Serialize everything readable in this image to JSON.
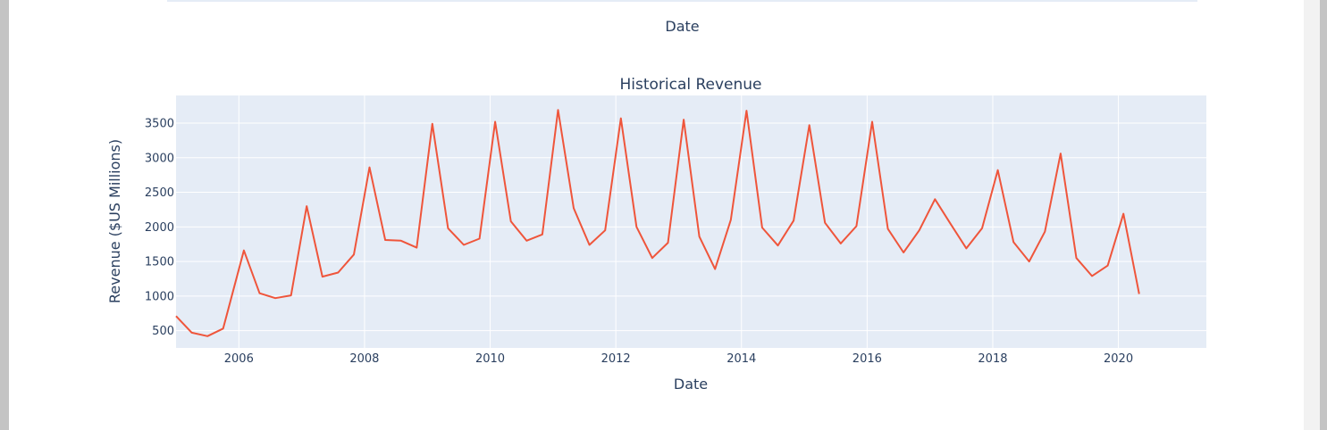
{
  "upper_chart": {
    "xlabel": "Date"
  },
  "chart_data": {
    "type": "line",
    "title": "Historical Revenue",
    "xlabel": "Date",
    "ylabel": "Revenue ($US Millions)",
    "xlim": [
      2005.0,
      2021.4
    ],
    "ylim": [
      250,
      3900
    ],
    "x_ticks": [
      2006,
      2008,
      2010,
      2012,
      2014,
      2016,
      2018,
      2020
    ],
    "y_ticks": [
      500,
      1000,
      1500,
      2000,
      2500,
      3000,
      3500
    ],
    "grid": true,
    "series": [
      {
        "color": "#ef553b",
        "x": [
          2005.0,
          2005.25,
          2005.5,
          2005.75,
          2006.08,
          2006.33,
          2006.58,
          2006.83,
          2007.08,
          2007.33,
          2007.58,
          2007.83,
          2008.08,
          2008.33,
          2008.58,
          2008.83,
          2009.08,
          2009.33,
          2009.58,
          2009.83,
          2010.08,
          2010.33,
          2010.58,
          2010.83,
          2011.08,
          2011.33,
          2011.58,
          2011.83,
          2012.08,
          2012.33,
          2012.58,
          2012.83,
          2013.08,
          2013.33,
          2013.58,
          2013.83,
          2014.08,
          2014.33,
          2014.58,
          2014.83,
          2015.08,
          2015.33,
          2015.58,
          2015.83,
          2016.08,
          2016.33,
          2016.58,
          2016.83,
          2017.08,
          2017.33,
          2017.58,
          2017.83,
          2018.08,
          2018.33,
          2018.58,
          2018.83,
          2019.08,
          2019.33,
          2019.58,
          2019.83,
          2020.08,
          2020.33
        ],
        "y": [
          710,
          470,
          420,
          530,
          1660,
          1040,
          970,
          1010,
          2300,
          1280,
          1340,
          1600,
          2860,
          1810,
          1800,
          1700,
          3490,
          1980,
          1740,
          1830,
          3520,
          2080,
          1800,
          1890,
          3690,
          2270,
          1740,
          1950,
          3570,
          2000,
          1550,
          1770,
          3550,
          1860,
          1390,
          2100,
          3680,
          1990,
          1730,
          2090,
          3470,
          2060,
          1760,
          2010,
          3520,
          1970,
          1630,
          1950,
          2400,
          2040,
          1690,
          1980,
          2820,
          1780,
          1500,
          1930,
          3060,
          1550,
          1290,
          1440,
          2190,
          1030
        ]
      }
    ]
  }
}
